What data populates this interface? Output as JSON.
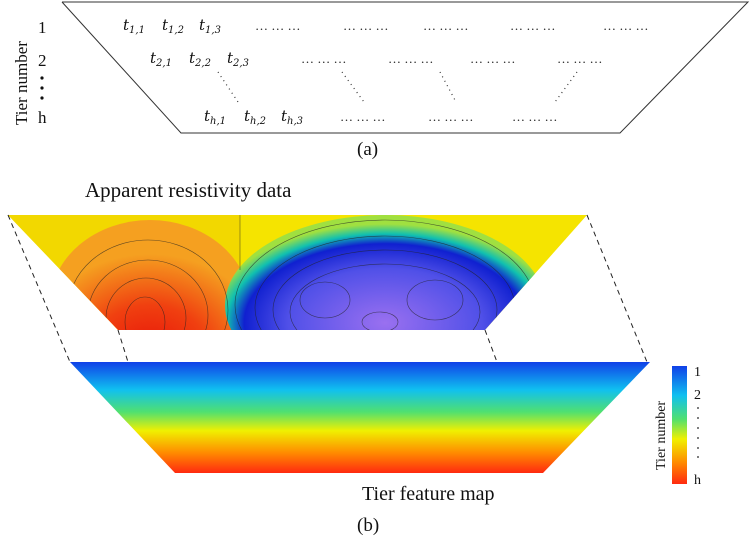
{
  "panel_a": {
    "caption": "(a)",
    "axis_label": "Tier number",
    "tier_labels": [
      "1",
      "2",
      "h"
    ],
    "rows": [
      {
        "cells": [
          {
            "base": "t",
            "sub": "1,1"
          },
          {
            "base": "t",
            "sub": "1,2"
          },
          {
            "base": "t",
            "sub": "1,3"
          }
        ],
        "ellipsis": "… … …"
      },
      {
        "cells": [
          {
            "base": "t",
            "sub": "2,1"
          },
          {
            "base": "t",
            "sub": "2,2"
          },
          {
            "base": "t",
            "sub": "2,3"
          }
        ],
        "ellipsis": "… … …"
      },
      {
        "cells": [
          {
            "base": "t",
            "sub": "h,1"
          },
          {
            "base": "t",
            "sub": "h,2"
          },
          {
            "base": "t",
            "sub": "h,3"
          }
        ],
        "ellipsis": "… … …"
      }
    ]
  },
  "panel_b": {
    "caption": "(b)",
    "top_title": "Apparent resistivity data",
    "bottom_title": "Tier feature map",
    "colorbar": {
      "label": "Tier number",
      "tick_labels": [
        "1",
        "2",
        "h"
      ],
      "colors": [
        "#1030e0",
        "#10c8f0",
        "#40e060",
        "#f0f000",
        "#ff8000",
        "#ff2010"
      ]
    },
    "contour_colors": {
      "background": "#f5e000",
      "high": "#ee2010",
      "low": "#6050f0",
      "blue_band": "#1020d0"
    }
  }
}
